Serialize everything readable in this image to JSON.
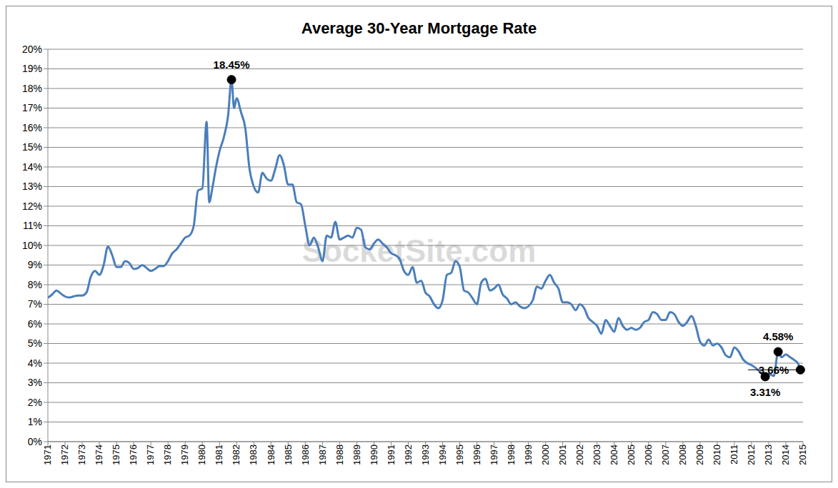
{
  "chart_data": {
    "type": "line",
    "title": "Average 30-Year Mortgage Rate",
    "watermark": "SocketSite.com",
    "color": "#4a7ebb",
    "grid": true,
    "x": [
      1971,
      1971.25,
      1971.5,
      1971.75,
      1972,
      1972.25,
      1972.5,
      1972.75,
      1973,
      1973.25,
      1973.5,
      1973.75,
      1974,
      1974.25,
      1974.5,
      1974.75,
      1975,
      1975.25,
      1975.5,
      1975.75,
      1976,
      1976.25,
      1976.5,
      1976.75,
      1977,
      1977.25,
      1977.5,
      1977.75,
      1978,
      1978.25,
      1978.5,
      1978.75,
      1979,
      1979.25,
      1979.5,
      1979.75,
      1980,
      1980.25,
      1980.4,
      1980.6,
      1980.8,
      1981,
      1981.25,
      1981.5,
      1981.7,
      1981.85,
      1982,
      1982.25,
      1982.5,
      1982.75,
      1983,
      1983.25,
      1983.5,
      1983.75,
      1984,
      1984.25,
      1984.5,
      1984.75,
      1985,
      1985.25,
      1985.5,
      1985.75,
      1986,
      1986.25,
      1986.5,
      1986.75,
      1987,
      1987.25,
      1987.5,
      1987.75,
      1988,
      1988.25,
      1988.5,
      1988.75,
      1989,
      1989.25,
      1989.5,
      1989.75,
      1990,
      1990.25,
      1990.5,
      1990.75,
      1991,
      1991.25,
      1991.5,
      1991.75,
      1992,
      1992.25,
      1992.5,
      1992.75,
      1993,
      1993.25,
      1993.5,
      1993.75,
      1994,
      1994.25,
      1994.5,
      1994.75,
      1995,
      1995.25,
      1995.5,
      1995.75,
      1996,
      1996.25,
      1996.5,
      1996.75,
      1997,
      1997.25,
      1997.5,
      1997.75,
      1998,
      1998.25,
      1998.5,
      1998.75,
      1999,
      1999.25,
      1999.5,
      1999.75,
      2000,
      2000.25,
      2000.5,
      2000.75,
      2001,
      2001.25,
      2001.5,
      2001.75,
      2002,
      2002.25,
      2002.5,
      2002.75,
      2003,
      2003.25,
      2003.5,
      2003.75,
      2004,
      2004.25,
      2004.5,
      2004.75,
      2005,
      2005.25,
      2005.5,
      2005.75,
      2006,
      2006.25,
      2006.5,
      2006.75,
      2007,
      2007.25,
      2007.5,
      2007.75,
      2008,
      2008.25,
      2008.5,
      2008.75,
      2009,
      2009.25,
      2009.5,
      2009.75,
      2010,
      2010.25,
      2010.5,
      2010.75,
      2011,
      2011.25,
      2011.5,
      2011.75,
      2012,
      2012.25,
      2012.5,
      2012.8,
      2013,
      2013.3,
      2013.55,
      2013.75,
      2014,
      2014.25,
      2014.5,
      2014.7,
      2014.85
    ],
    "values": [
      7.33,
      7.5,
      7.7,
      7.55,
      7.4,
      7.35,
      7.4,
      7.45,
      7.45,
      7.6,
      8.4,
      8.7,
      8.5,
      9.0,
      9.95,
      9.5,
      8.9,
      8.9,
      9.2,
      9.1,
      8.8,
      8.85,
      9.0,
      8.85,
      8.7,
      8.8,
      8.95,
      8.95,
      9.2,
      9.6,
      9.8,
      10.1,
      10.4,
      10.5,
      11.0,
      12.8,
      12.9,
      16.3,
      12.2,
      13.0,
      14.0,
      14.8,
      15.5,
      16.6,
      18.45,
      17.0,
      17.5,
      16.8,
      16.0,
      13.9,
      13.0,
      12.7,
      13.7,
      13.4,
      13.3,
      13.9,
      14.6,
      14.1,
      13.1,
      13.1,
      12.2,
      12.1,
      11.0,
      10.0,
      10.4,
      9.9,
      9.2,
      10.5,
      10.4,
      11.2,
      10.3,
      10.4,
      10.5,
      10.4,
      10.9,
      10.8,
      9.9,
      9.8,
      10.1,
      10.3,
      10.1,
      9.9,
      9.6,
      9.5,
      9.3,
      8.7,
      8.5,
      8.9,
      8.1,
      8.2,
      7.6,
      7.4,
      7.0,
      6.8,
      7.2,
      8.5,
      8.6,
      9.2,
      8.9,
      7.7,
      7.6,
      7.3,
      7.0,
      8.1,
      8.3,
      7.7,
      7.8,
      8.0,
      7.5,
      7.3,
      7.0,
      7.1,
      6.9,
      6.8,
      6.9,
      7.2,
      7.9,
      7.8,
      8.2,
      8.5,
      8.1,
      7.8,
      7.1,
      7.1,
      7.0,
      6.7,
      7.0,
      6.8,
      6.3,
      6.1,
      5.9,
      5.5,
      6.2,
      5.9,
      5.6,
      6.3,
      5.9,
      5.7,
      5.8,
      5.7,
      5.8,
      6.1,
      6.2,
      6.6,
      6.5,
      6.2,
      6.2,
      6.6,
      6.5,
      6.1,
      5.9,
      6.1,
      6.4,
      5.9,
      5.1,
      4.9,
      5.2,
      4.9,
      5.0,
      4.8,
      4.4,
      4.3,
      4.8,
      4.6,
      4.2,
      4.0,
      3.9,
      3.75,
      3.55,
      3.31,
      3.45,
      3.35,
      4.58,
      4.3,
      4.45,
      4.3,
      4.15,
      4.0,
      3.66
    ],
    "xlim": [
      1971,
      2015
    ],
    "xticks": [
      1971,
      1972,
      1973,
      1974,
      1975,
      1976,
      1977,
      1978,
      1979,
      1980,
      1981,
      1982,
      1983,
      1984,
      1985,
      1986,
      1987,
      1988,
      1989,
      1990,
      1991,
      1992,
      1993,
      1994,
      1995,
      1996,
      1997,
      1998,
      1999,
      2000,
      2001,
      2002,
      2003,
      2004,
      2005,
      2006,
      2007,
      2008,
      2009,
      2010,
      2011,
      2012,
      2013,
      2014,
      2015
    ],
    "ylim": [
      0,
      20
    ],
    "yticks": [
      {
        "value": 0,
        "label": "0%"
      },
      {
        "value": 1,
        "label": "1%"
      },
      {
        "value": 2,
        "label": "2%"
      },
      {
        "value": 3,
        "label": "3%"
      },
      {
        "value": 4,
        "label": "4%"
      },
      {
        "value": 5,
        "label": "5%"
      },
      {
        "value": 6,
        "label": "6%"
      },
      {
        "value": 7,
        "label": "7%"
      },
      {
        "value": 8,
        "label": "8%"
      },
      {
        "value": 9,
        "label": "9%"
      },
      {
        "value": 10,
        "label": "10%"
      },
      {
        "value": 11,
        "label": "11%"
      },
      {
        "value": 12,
        "label": "12%"
      },
      {
        "value": 13,
        "label": "13%"
      },
      {
        "value": 14,
        "label": "14%"
      },
      {
        "value": 15,
        "label": "15%"
      },
      {
        "value": 16,
        "label": "16%"
      },
      {
        "value": 17,
        "label": "17%"
      },
      {
        "value": 18,
        "label": "18%"
      },
      {
        "value": 19,
        "label": "19%"
      },
      {
        "value": 20,
        "label": "20%"
      }
    ],
    "annotations": [
      {
        "label": "18.45%",
        "x": 1981.7,
        "y": 18.45
      },
      {
        "label": "4.58%",
        "x": 2013.55,
        "y": 4.58
      },
      {
        "label": "3.31%",
        "x": 2012.8,
        "y": 3.31
      },
      {
        "label": "3.66%",
        "x": 2014.85,
        "y": 3.66,
        "line_x": [
          2011.8,
          2014.85
        ]
      }
    ]
  }
}
